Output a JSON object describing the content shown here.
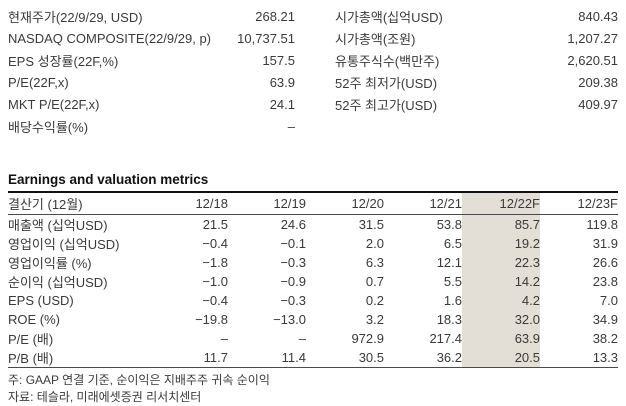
{
  "summary": {
    "left": [
      {
        "label": "현재주가(22/9/29, USD)",
        "value": "268.21"
      },
      {
        "label": "NASDAQ COMPOSITE(22/9/29, p)",
        "value": "10,737.51"
      },
      {
        "label": "EPS 성장률(22F,%)",
        "value": "157.5"
      },
      {
        "label": "P/E(22F,x)",
        "value": "63.9"
      },
      {
        "label": "MKT P/E(22F,x)",
        "value": "24.1"
      },
      {
        "label": "배당수익률(%)",
        "value": "–"
      }
    ],
    "right": [
      {
        "label": "시가총액(십억USD)",
        "value": "840.43"
      },
      {
        "label": "시가총액(조원)",
        "value": "1,207.27"
      },
      {
        "label": "유통주식수(백만주)",
        "value": "2,620.51"
      },
      {
        "label": "52주 최저가(USD)",
        "value": "209.38"
      },
      {
        "label": "52주 최고가(USD)",
        "value": "409.97"
      }
    ]
  },
  "table": {
    "title": "Earnings and valuation metrics",
    "columns": [
      "결산기 (12월)",
      "12/18",
      "12/19",
      "12/20",
      "12/21",
      "12/22F",
      "12/23F"
    ],
    "highlight_column": "12/22F",
    "highlight_column_index": 5,
    "rows": [
      {
        "label": "매출액 (십억USD)",
        "values": [
          "21.5",
          "24.6",
          "31.5",
          "53.8",
          "85.7",
          "119.8"
        ]
      },
      {
        "label": "영업이익 (십억USD)",
        "values": [
          "−0.4",
          "−0.1",
          "2.0",
          "6.5",
          "19.2",
          "31.9"
        ]
      },
      {
        "label": "영업이익률 (%)",
        "values": [
          "−1.8",
          "−0.3",
          "6.3",
          "12.1",
          "22.3",
          "26.6"
        ]
      },
      {
        "label": "순이익 (십억USD)",
        "values": [
          "−1.0",
          "−0.9",
          "0.7",
          "5.5",
          "14.2",
          "23.8"
        ]
      },
      {
        "label": "EPS (USD)",
        "values": [
          "−0.4",
          "−0.3",
          "0.2",
          "1.6",
          "4.2",
          "7.0"
        ]
      },
      {
        "label": "ROE (%)",
        "values": [
          "−19.8",
          "−13.0",
          "3.2",
          "18.3",
          "32.0",
          "34.9"
        ]
      },
      {
        "label": "P/E (배)",
        "values": [
          "–",
          "–",
          "972.9",
          "217.4",
          "63.9",
          "38.2"
        ]
      },
      {
        "label": "P/B (배)",
        "values": [
          "11.7",
          "11.4",
          "30.5",
          "36.2",
          "20.5",
          "13.3"
        ]
      }
    ]
  },
  "notes": [
    "주: GAAP 연결 기준, 순이익은 지배주주 귀속 순이익",
    "자료: 테슬라, 미래에셋증권 리서치센터"
  ],
  "colors": {
    "highlight": "#e4dfd6",
    "text": "#3a3a3a",
    "border_heavy": "#111111",
    "border_light": "#4a4a4a"
  }
}
